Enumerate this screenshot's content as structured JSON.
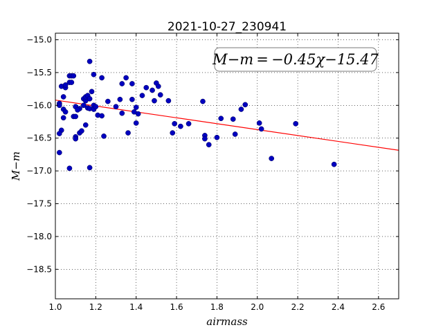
{
  "chart_data": {
    "type": "scatter",
    "title": "2021-10-27_230941",
    "xlabel": "airmass",
    "ylabel": "M−m",
    "xlim": [
      1.0,
      2.7
    ],
    "ylim": [
      -14.9,
      -18.95
    ],
    "y_inverted": true,
    "grid": true,
    "x_ticks": [
      1.0,
      1.2,
      1.4,
      1.6,
      1.8,
      2.0,
      2.2,
      2.4,
      2.6
    ],
    "x_tick_labels": [
      "1.0",
      "1.2",
      "1.4",
      "1.6",
      "1.8",
      "2.0",
      "2.2",
      "2.4",
      "2.6"
    ],
    "y_ticks": [
      -15.0,
      -15.5,
      -16.0,
      -16.5,
      -17.0,
      -17.5,
      -18.0,
      -18.5
    ],
    "y_tick_labels": [
      "−15.0",
      "−15.5",
      "−16.0",
      "−16.5",
      "−17.0",
      "−17.5",
      "−18.0",
      "−18.5"
    ],
    "annotation": "M−m = −0.45χ−15.47",
    "fit": {
      "slope": -0.45,
      "intercept": -15.47,
      "color": "#ff0000"
    },
    "marker_color": "#0000bf",
    "points": [
      [
        1.02,
        -15.97
      ],
      [
        1.03,
        -15.71
      ],
      [
        1.02,
        -16.0
      ],
      [
        1.03,
        -16.38
      ],
      [
        1.02,
        -16.43
      ],
      [
        1.02,
        -16.72
      ],
      [
        1.04,
        -15.87
      ],
      [
        1.05,
        -15.73
      ],
      [
        1.05,
        -15.69
      ],
      [
        1.04,
        -16.06
      ],
      [
        1.05,
        -16.1
      ],
      [
        1.04,
        -16.19
      ],
      [
        1.07,
        -15.55
      ],
      [
        1.08,
        -15.55
      ],
      [
        1.07,
        -15.65
      ],
      [
        1.08,
        -15.65
      ],
      [
        1.09,
        -15.55
      ],
      [
        1.07,
        -16.96
      ],
      [
        1.09,
        -16.17
      ],
      [
        1.1,
        -16.17
      ],
      [
        1.1,
        -16.02
      ],
      [
        1.1,
        -16.48
      ],
      [
        1.1,
        -16.51
      ],
      [
        1.12,
        -16.05
      ],
      [
        1.11,
        -16.07
      ],
      [
        1.12,
        -16.42
      ],
      [
        1.13,
        -16.39
      ],
      [
        1.14,
        -15.9
      ],
      [
        1.14,
        -16.0
      ],
      [
        1.15,
        -15.93
      ],
      [
        1.15,
        -15.87
      ],
      [
        1.16,
        -15.85
      ],
      [
        1.16,
        -16.04
      ],
      [
        1.15,
        -16.3
      ],
      [
        1.17,
        -15.33
      ],
      [
        1.17,
        -15.9
      ],
      [
        1.17,
        -16.05
      ],
      [
        1.18,
        -15.79
      ],
      [
        1.19,
        -15.53
      ],
      [
        1.19,
        -16.0
      ],
      [
        1.19,
        -16.06
      ],
      [
        1.2,
        -16.02
      ],
      [
        1.21,
        -16.15
      ],
      [
        1.23,
        -15.58
      ],
      [
        1.23,
        -16.16
      ],
      [
        1.24,
        -16.47
      ],
      [
        1.26,
        -15.94
      ],
      [
        1.17,
        -16.95
      ],
      [
        1.3,
        -16.02
      ],
      [
        1.32,
        -15.91
      ],
      [
        1.33,
        -15.67
      ],
      [
        1.33,
        -16.12
      ],
      [
        1.35,
        -15.58
      ],
      [
        1.36,
        -16.42
      ],
      [
        1.38,
        -15.67
      ],
      [
        1.38,
        -15.91
      ],
      [
        1.39,
        -16.1
      ],
      [
        1.4,
        -16.03
      ],
      [
        1.4,
        -16.27
      ],
      [
        1.41,
        -16.13
      ],
      [
        1.43,
        -15.85
      ],
      [
        1.45,
        -15.73
      ],
      [
        1.48,
        -15.77
      ],
      [
        1.49,
        -15.93
      ],
      [
        1.5,
        -15.66
      ],
      [
        1.51,
        -15.71
      ],
      [
        1.52,
        -15.84
      ],
      [
        1.56,
        -15.93
      ],
      [
        1.58,
        -16.42
      ],
      [
        1.59,
        -16.28
      ],
      [
        1.62,
        -16.32
      ],
      [
        1.66,
        -16.28
      ],
      [
        1.73,
        -15.94
      ],
      [
        1.74,
        -16.46
      ],
      [
        1.74,
        -16.51
      ],
      [
        1.76,
        -16.6
      ],
      [
        1.8,
        -16.49
      ],
      [
        1.82,
        -16.2
      ],
      [
        1.88,
        -16.21
      ],
      [
        1.89,
        -16.44
      ],
      [
        1.92,
        -16.06
      ],
      [
        1.94,
        -15.99
      ],
      [
        2.01,
        -16.27
      ],
      [
        2.02,
        -16.36
      ],
      [
        2.07,
        -16.81
      ],
      [
        2.19,
        -16.28
      ],
      [
        2.38,
        -16.9
      ]
    ]
  }
}
